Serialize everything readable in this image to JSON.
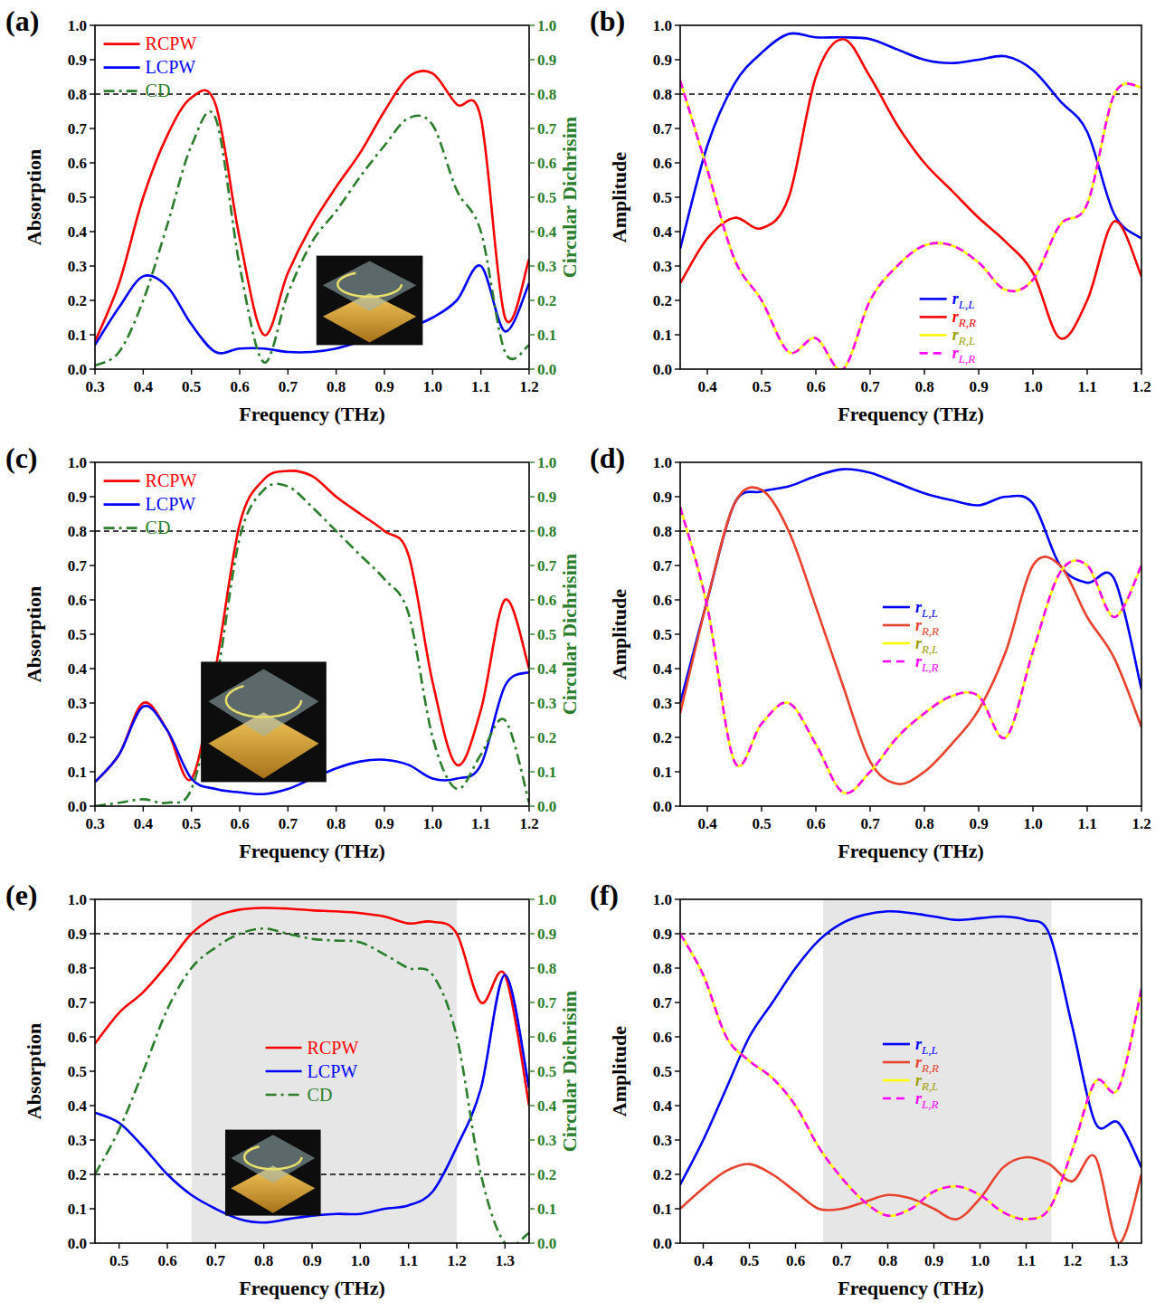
{
  "chart_data": [
    {
      "type": "line",
      "title": "(a)",
      "x_label": "Frequency (THz)",
      "y_label": "Absorption",
      "y2_label": "Circular Dichrisim",
      "x": [
        0.3,
        0.35,
        0.4,
        0.45,
        0.5,
        0.55,
        0.6,
        0.65,
        0.7,
        0.75,
        0.8,
        0.85,
        0.9,
        0.95,
        1.0,
        1.05,
        1.1,
        1.15,
        1.2
      ],
      "xlim": [
        0.3,
        1.2
      ],
      "xticks": [
        0.3,
        0.4,
        0.5,
        0.6,
        0.7,
        0.8,
        0.9,
        {
          "value": 1,
          "label": "1.0"
        },
        1.1,
        1.2
      ],
      "ylim": [
        0,
        1
      ],
      "yticks": [
        {
          "value": 0,
          "label": "0.0"
        },
        0.1,
        0.2,
        0.3,
        0.4,
        0.5,
        0.6,
        0.7,
        0.8,
        0.9,
        {
          "value": 1,
          "label": "1.0"
        }
      ],
      "y2lim": [
        0,
        1
      ],
      "y2ticks": [
        {
          "value": 0,
          "label": "0.0"
        },
        0.1,
        0.2,
        0.3,
        0.4,
        0.5,
        0.6,
        0.7,
        0.8,
        0.9,
        {
          "value": 1,
          "label": "1.0"
        }
      ],
      "legend": "upper left",
      "hlines": [
        0.8
      ],
      "series": [
        {
          "name": "RCPW",
          "color": "#ff0000",
          "line_style": "solid",
          "values": [
            0.08,
            0.25,
            0.5,
            0.68,
            0.79,
            0.77,
            0.38,
            0.1,
            0.28,
            0.42,
            0.53,
            0.63,
            0.75,
            0.85,
            0.86,
            0.77,
            0.73,
            0.15,
            0.32
          ]
        },
        {
          "name": "LCPW",
          "color": "#0000ff",
          "line_style": "solid",
          "values": [
            0.07,
            0.18,
            0.27,
            0.24,
            0.13,
            0.05,
            0.06,
            0.06,
            0.05,
            0.05,
            0.06,
            0.08,
            0.1,
            0.12,
            0.15,
            0.2,
            0.3,
            0.11,
            0.25
          ]
        },
        {
          "name": "CD",
          "color": "#2a7d2a",
          "line_style": "dashdot",
          "axis": "y2",
          "values": [
            0.01,
            0.05,
            0.2,
            0.42,
            0.65,
            0.73,
            0.3,
            0.02,
            0.22,
            0.37,
            0.46,
            0.56,
            0.65,
            0.73,
            0.71,
            0.52,
            0.4,
            0.05,
            0.07
          ]
        }
      ]
    },
    {
      "type": "line",
      "title": "(b)",
      "x_label": "Frequency (THz)",
      "y_label": "Amplitude",
      "x": [
        0.35,
        0.4,
        0.45,
        0.5,
        0.55,
        0.6,
        0.65,
        0.7,
        0.75,
        0.8,
        0.85,
        0.9,
        0.95,
        1.0,
        1.05,
        1.1,
        1.15,
        1.2
      ],
      "xlim": [
        0.35,
        1.2
      ],
      "xticks": [
        0.4,
        0.5,
        0.6,
        0.7,
        0.8,
        0.9,
        {
          "value": 1,
          "label": "1.0"
        },
        1.1,
        1.2
      ],
      "ylim": [
        0,
        1
      ],
      "yticks": [
        {
          "value": 0,
          "label": "0.0"
        },
        0.1,
        0.2,
        0.3,
        0.4,
        0.5,
        0.6,
        0.7,
        0.8,
        0.9,
        {
          "value": 1,
          "label": "1.0"
        }
      ],
      "legend": "lower center",
      "hlines": [
        0.8
      ],
      "series": [
        {
          "name": "rL,L",
          "color": "#0000ff",
          "line_style": "solid",
          "values": [
            0.35,
            0.65,
            0.83,
            0.92,
            0.975,
            0.965,
            0.965,
            0.96,
            0.93,
            0.9,
            0.89,
            0.9,
            0.91,
            0.87,
            0.78,
            0.69,
            0.45,
            0.38
          ]
        },
        {
          "name": "rR,R",
          "color": "#ff0000",
          "line_style": "solid",
          "values": [
            0.25,
            0.38,
            0.44,
            0.41,
            0.5,
            0.85,
            0.96,
            0.85,
            0.71,
            0.6,
            0.52,
            0.44,
            0.37,
            0.28,
            0.09,
            0.2,
            0.43,
            0.27
          ]
        },
        {
          "name": "rR,L",
          "color": "#ffff00",
          "line_style": "solid",
          "values": [
            0.84,
            0.58,
            0.32,
            0.2,
            0.05,
            0.09,
            0.0,
            0.2,
            0.3,
            0.36,
            0.36,
            0.31,
            0.23,
            0.26,
            0.42,
            0.48,
            0.8,
            0.82
          ]
        },
        {
          "name": "rL,R",
          "color": "#ff00ff",
          "line_style": "dashed",
          "values": [
            0.84,
            0.58,
            0.32,
            0.2,
            0.05,
            0.09,
            0.0,
            0.2,
            0.3,
            0.36,
            0.36,
            0.31,
            0.23,
            0.26,
            0.42,
            0.48,
            0.8,
            0.82
          ]
        }
      ]
    },
    {
      "type": "line",
      "title": "(c)",
      "x_label": "Frequency (THz)",
      "y_label": "Absorption",
      "y2_label": "Circular Dichrisim",
      "x": [
        0.3,
        0.35,
        0.4,
        0.45,
        0.5,
        0.55,
        0.6,
        0.65,
        0.7,
        0.75,
        0.8,
        0.85,
        0.9,
        0.95,
        1.0,
        1.05,
        1.1,
        1.15,
        1.2
      ],
      "xlim": [
        0.3,
        1.2
      ],
      "xticks": [
        0.3,
        0.4,
        0.5,
        0.6,
        0.7,
        0.8,
        0.9,
        {
          "value": 1,
          "label": "1.0"
        },
        1.1,
        1.2
      ],
      "ylim": [
        0,
        1
      ],
      "yticks": [
        {
          "value": 0,
          "label": "0.0"
        },
        0.1,
        0.2,
        0.3,
        0.4,
        0.5,
        0.6,
        0.7,
        0.8,
        0.9,
        {
          "value": 1,
          "label": "1.0"
        }
      ],
      "y2lim": [
        0,
        1
      ],
      "y2ticks": [
        {
          "value": 0,
          "label": "0.0"
        },
        0.1,
        0.2,
        0.3,
        0.4,
        0.5,
        0.6,
        0.7,
        0.8,
        0.9,
        {
          "value": 1,
          "label": "1.0"
        }
      ],
      "legend": "upper left",
      "hlines": [
        0.8
      ],
      "series": [
        {
          "name": "RCPW",
          "color": "#ff0000",
          "line_style": "solid",
          "values": [
            0.07,
            0.15,
            0.3,
            0.22,
            0.08,
            0.4,
            0.82,
            0.95,
            0.975,
            0.96,
            0.9,
            0.85,
            0.8,
            0.73,
            0.36,
            0.12,
            0.28,
            0.6,
            0.4
          ]
        },
        {
          "name": "LCPW",
          "color": "#0000ff",
          "line_style": "solid",
          "values": [
            0.07,
            0.15,
            0.29,
            0.22,
            0.08,
            0.05,
            0.04,
            0.035,
            0.05,
            0.08,
            0.11,
            0.13,
            0.135,
            0.12,
            0.08,
            0.08,
            0.12,
            0.35,
            0.39
          ]
        },
        {
          "name": "CD",
          "color": "#2a7d2a",
          "line_style": "dashdot",
          "axis": "y2",
          "values": [
            0.0,
            0.01,
            0.02,
            0.01,
            0.05,
            0.35,
            0.78,
            0.92,
            0.93,
            0.87,
            0.8,
            0.73,
            0.66,
            0.56,
            0.2,
            0.05,
            0.15,
            0.25,
            0.01
          ]
        }
      ]
    },
    {
      "type": "line",
      "title": "(d)",
      "x_label": "Frequency (THz)",
      "y_label": "Amplitude",
      "x": [
        0.35,
        0.4,
        0.45,
        0.5,
        0.55,
        0.6,
        0.65,
        0.7,
        0.75,
        0.8,
        0.85,
        0.9,
        0.95,
        1.0,
        1.05,
        1.1,
        1.15,
        1.2
      ],
      "xlim": [
        0.35,
        1.2
      ],
      "xticks": [
        0.4,
        0.5,
        0.6,
        0.7,
        0.8,
        0.9,
        {
          "value": 1,
          "label": "1.0"
        },
        1.1,
        1.2
      ],
      "ylim": [
        0,
        1
      ],
      "yticks": [
        {
          "value": 0,
          "label": "0.0"
        },
        0.1,
        0.2,
        0.3,
        0.4,
        0.5,
        0.6,
        0.7,
        0.8,
        0.9,
        {
          "value": 1,
          "label": "1.0"
        }
      ],
      "legend": "center",
      "hlines": [
        0.8
      ],
      "series": [
        {
          "name": "rL,L",
          "color": "#0000ff",
          "line_style": "solid",
          "values": [
            0.3,
            0.6,
            0.88,
            0.915,
            0.93,
            0.96,
            0.98,
            0.97,
            0.94,
            0.91,
            0.89,
            0.875,
            0.9,
            0.88,
            0.7,
            0.65,
            0.66,
            0.34
          ]
        },
        {
          "name": "rR,R",
          "color": "#e8412c",
          "line_style": "solid",
          "values": [
            0.27,
            0.6,
            0.88,
            0.92,
            0.8,
            0.58,
            0.35,
            0.13,
            0.065,
            0.1,
            0.18,
            0.28,
            0.45,
            0.7,
            0.7,
            0.55,
            0.43,
            0.23
          ]
        },
        {
          "name": "rR,L",
          "color": "#ffff00",
          "line_style": "solid",
          "values": [
            0.87,
            0.58,
            0.13,
            0.24,
            0.3,
            0.18,
            0.04,
            0.1,
            0.2,
            0.27,
            0.32,
            0.32,
            0.2,
            0.45,
            0.68,
            0.7,
            0.55,
            0.7
          ]
        },
        {
          "name": "rL,R",
          "color": "#ff00ff",
          "line_style": "dashed",
          "values": [
            0.87,
            0.58,
            0.13,
            0.24,
            0.3,
            0.18,
            0.04,
            0.1,
            0.2,
            0.27,
            0.32,
            0.32,
            0.2,
            0.45,
            0.68,
            0.7,
            0.55,
            0.7
          ]
        }
      ]
    },
    {
      "type": "line",
      "title": "(e)",
      "x_label": "Frequency (THz)",
      "y_label": "Absorption",
      "y2_label": "Circular Dichrisim",
      "x": [
        0.45,
        0.5,
        0.55,
        0.6,
        0.65,
        0.7,
        0.75,
        0.8,
        0.85,
        0.9,
        0.95,
        1.0,
        1.05,
        1.1,
        1.15,
        1.2,
        1.25,
        1.3,
        1.35
      ],
      "xlim": [
        0.45,
        1.35
      ],
      "xticks": [
        0.5,
        0.6,
        0.7,
        0.8,
        0.9,
        {
          "value": 1,
          "label": "1.0"
        },
        1.1,
        1.2,
        1.3
      ],
      "ylim": [
        0,
        1
      ],
      "yticks": [
        {
          "value": 0,
          "label": "0.0"
        },
        0.1,
        0.2,
        0.3,
        0.4,
        0.5,
        0.6,
        0.7,
        0.8,
        0.9,
        {
          "value": 1,
          "label": "1.0"
        }
      ],
      "y2lim": [
        0,
        1
      ],
      "y2ticks": [
        {
          "value": 0,
          "label": "0.0"
        },
        0.1,
        0.2,
        0.3,
        0.4,
        0.5,
        0.6,
        0.7,
        0.8,
        0.9,
        {
          "value": 1,
          "label": "1.0"
        }
      ],
      "legend": "center",
      "hlines": [
        0.9,
        0.2
      ],
      "band": [
        0.65,
        1.2
      ],
      "series": [
        {
          "name": "RCPW",
          "color": "#ff0000",
          "line_style": "solid",
          "values": [
            0.58,
            0.67,
            0.73,
            0.81,
            0.9,
            0.95,
            0.97,
            0.975,
            0.973,
            0.968,
            0.965,
            0.96,
            0.95,
            0.93,
            0.935,
            0.9,
            0.7,
            0.78,
            0.4
          ]
        },
        {
          "name": "LCPW",
          "color": "#0000ff",
          "line_style": "solid",
          "values": [
            0.38,
            0.35,
            0.28,
            0.2,
            0.14,
            0.1,
            0.07,
            0.06,
            0.07,
            0.08,
            0.085,
            0.085,
            0.1,
            0.11,
            0.15,
            0.28,
            0.45,
            0.78,
            0.45
          ]
        },
        {
          "name": "CD",
          "color": "#2a7d2a",
          "line_style": "dashdot",
          "axis": "y2",
          "values": [
            0.2,
            0.33,
            0.5,
            0.68,
            0.8,
            0.86,
            0.9,
            0.915,
            0.9,
            0.885,
            0.88,
            0.875,
            0.84,
            0.8,
            0.78,
            0.6,
            0.2,
            0.0,
            0.03
          ]
        }
      ]
    },
    {
      "type": "line",
      "title": "(f)",
      "x_label": "Frequency (THz)",
      "y_label": "Amplitude",
      "x": [
        0.35,
        0.4,
        0.45,
        0.5,
        0.55,
        0.6,
        0.65,
        0.7,
        0.75,
        0.8,
        0.85,
        0.9,
        0.95,
        1.0,
        1.05,
        1.1,
        1.15,
        1.2,
        1.25,
        1.3,
        1.35
      ],
      "xlim": [
        0.35,
        1.35
      ],
      "xticks": [
        0.4,
        0.5,
        0.6,
        0.7,
        0.8,
        0.9,
        {
          "value": 1,
          "label": "1.0"
        },
        1.1,
        1.2,
        1.3
      ],
      "ylim": [
        0,
        1
      ],
      "yticks": [
        {
          "value": 0,
          "label": "0.0"
        },
        0.1,
        0.2,
        0.3,
        0.4,
        0.5,
        0.6,
        0.7,
        0.8,
        0.9,
        {
          "value": 1,
          "label": "1.0"
        }
      ],
      "legend": "center",
      "hlines": [
        0.9
      ],
      "band": [
        0.66,
        1.155
      ],
      "series": [
        {
          "name": "rL,L",
          "color": "#0000ff",
          "line_style": "solid",
          "values": [
            0.17,
            0.3,
            0.45,
            0.6,
            0.7,
            0.8,
            0.88,
            0.93,
            0.955,
            0.965,
            0.96,
            0.95,
            0.94,
            0.945,
            0.95,
            0.94,
            0.9,
            0.63,
            0.35,
            0.35,
            0.22
          ]
        },
        {
          "name": "rR,R",
          "color": "#e8412c",
          "line_style": "solid",
          "values": [
            0.1,
            0.16,
            0.21,
            0.23,
            0.2,
            0.15,
            0.1,
            0.1,
            0.12,
            0.14,
            0.13,
            0.1,
            0.07,
            0.13,
            0.22,
            0.25,
            0.23,
            0.18,
            0.25,
            0.0,
            0.2
          ]
        },
        {
          "name": "rR,L",
          "color": "#ffff00",
          "line_style": "solid",
          "values": [
            0.9,
            0.78,
            0.6,
            0.53,
            0.48,
            0.4,
            0.28,
            0.19,
            0.12,
            0.08,
            0.1,
            0.15,
            0.165,
            0.14,
            0.09,
            0.07,
            0.1,
            0.27,
            0.47,
            0.45,
            0.74
          ]
        },
        {
          "name": "rL,R",
          "color": "#ff00ff",
          "line_style": "dashed",
          "values": [
            0.9,
            0.78,
            0.6,
            0.53,
            0.48,
            0.4,
            0.28,
            0.19,
            0.12,
            0.08,
            0.1,
            0.15,
            0.165,
            0.14,
            0.09,
            0.07,
            0.1,
            0.27,
            0.47,
            0.45,
            0.74
          ]
        }
      ]
    }
  ]
}
